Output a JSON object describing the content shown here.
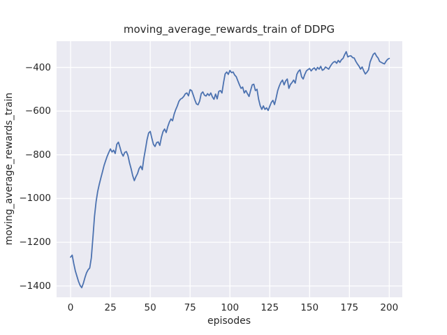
{
  "figure": {
    "title": "moving_average_rewards_train of DDPG",
    "xlabel": "episodes",
    "ylabel": "moving_average_rewards_train"
  },
  "chart_data": {
    "type": "line",
    "title": "moving_average_rewards_train of DDPG",
    "xlabel": "episodes",
    "ylabel": "moving_average_rewards_train",
    "grid": true,
    "legend": "none",
    "style": "seaborn-darkgrid",
    "plot_bg_color": "#EAEAF2",
    "grid_color": "#FFFFFF",
    "line_color": "#4C72B0",
    "text_color": "#262626",
    "xlim": [
      -8.8,
      208.2
    ],
    "ylim": [
      -1452,
      -280
    ],
    "xticks": [
      0,
      25,
      50,
      75,
      100,
      125,
      150,
      175,
      200
    ],
    "xtick_labels": [
      "0",
      "25",
      "50",
      "75",
      "100",
      "125",
      "150",
      "175",
      "200"
    ],
    "yticks": [
      -400,
      -600,
      -800,
      -1000,
      -1200,
      -1400
    ],
    "ytick_labels": [
      "−400",
      "−600",
      "−800",
      "−1000",
      "−1200",
      "−1400"
    ],
    "series": [
      {
        "name": "moving_average_rewards_train",
        "color": "#4C72B0",
        "x": [
          0,
          1,
          2,
          3,
          4,
          5,
          6,
          7,
          8,
          9,
          10,
          11,
          12,
          13,
          14,
          15,
          16,
          17,
          18,
          19,
          20,
          21,
          22,
          23,
          24,
          25,
          26,
          27,
          28,
          29,
          30,
          31,
          32,
          33,
          34,
          35,
          36,
          37,
          38,
          39,
          40,
          41,
          42,
          43,
          44,
          45,
          46,
          47,
          48,
          49,
          50,
          51,
          52,
          53,
          54,
          55,
          56,
          57,
          58,
          59,
          60,
          61,
          62,
          63,
          64,
          65,
          66,
          67,
          68,
          69,
          70,
          71,
          72,
          73,
          74,
          75,
          76,
          77,
          78,
          79,
          80,
          81,
          82,
          83,
          84,
          85,
          86,
          87,
          88,
          89,
          90,
          91,
          92,
          93,
          94,
          95,
          96,
          97,
          98,
          99,
          100,
          101,
          102,
          103,
          104,
          105,
          106,
          107,
          108,
          109,
          110,
          111,
          112,
          113,
          114,
          115,
          116,
          117,
          118,
          119,
          120,
          121,
          122,
          123,
          124,
          125,
          126,
          127,
          128,
          129,
          130,
          131,
          132,
          133,
          134,
          135,
          136,
          137,
          138,
          139,
          140,
          141,
          142,
          143,
          144,
          145,
          146,
          147,
          148,
          149,
          150,
          151,
          152,
          153,
          154,
          155,
          156,
          157,
          158,
          159,
          160,
          161,
          162,
          163,
          164,
          165,
          166,
          167,
          168,
          169,
          170,
          171,
          172,
          173,
          174,
          175,
          176,
          177,
          178,
          179,
          180,
          181,
          182,
          183,
          184,
          185,
          186,
          187,
          188,
          189,
          190,
          191,
          192,
          193,
          194,
          195,
          196,
          197,
          198,
          199,
          200
        ],
        "y": [
          -1268,
          -1259,
          -1298,
          -1332,
          -1356,
          -1380,
          -1398,
          -1408,
          -1388,
          -1362,
          -1340,
          -1326,
          -1318,
          -1272,
          -1180,
          -1082,
          -1015,
          -968,
          -935,
          -906,
          -878,
          -849,
          -827,
          -806,
          -789,
          -773,
          -787,
          -779,
          -794,
          -752,
          -742,
          -766,
          -792,
          -806,
          -789,
          -785,
          -803,
          -837,
          -864,
          -896,
          -918,
          -900,
          -886,
          -863,
          -852,
          -868,
          -815,
          -774,
          -730,
          -700,
          -693,
          -724,
          -752,
          -762,
          -744,
          -741,
          -757,
          -720,
          -694,
          -682,
          -698,
          -671,
          -650,
          -636,
          -644,
          -614,
          -593,
          -576,
          -555,
          -545,
          -541,
          -533,
          -521,
          -517,
          -530,
          -502,
          -506,
          -527,
          -549,
          -567,
          -571,
          -554,
          -520,
          -512,
          -527,
          -531,
          -520,
          -529,
          -517,
          -535,
          -546,
          -522,
          -544,
          -510,
          -506,
          -517,
          -470,
          -430,
          -421,
          -432,
          -414,
          -424,
          -421,
          -435,
          -443,
          -462,
          -480,
          -496,
          -490,
          -517,
          -506,
          -520,
          -533,
          -505,
          -480,
          -477,
          -506,
          -500,
          -545,
          -575,
          -592,
          -576,
          -592,
          -585,
          -597,
          -578,
          -560,
          -551,
          -570,
          -540,
          -506,
          -485,
          -468,
          -458,
          -480,
          -462,
          -453,
          -496,
          -478,
          -469,
          -458,
          -472,
          -432,
          -418,
          -411,
          -443,
          -453,
          -432,
          -416,
          -410,
          -405,
          -416,
          -407,
          -402,
          -413,
          -400,
          -408,
          -395,
          -413,
          -409,
          -398,
          -403,
          -408,
          -395,
          -384,
          -376,
          -373,
          -381,
          -368,
          -377,
          -365,
          -359,
          -342,
          -328,
          -352,
          -348,
          -347,
          -355,
          -357,
          -372,
          -384,
          -394,
          -408,
          -398,
          -416,
          -430,
          -422,
          -411,
          -375,
          -357,
          -340,
          -334,
          -348,
          -357,
          -373,
          -377,
          -381,
          -384,
          -372,
          -363,
          -359
        ]
      }
    ]
  }
}
